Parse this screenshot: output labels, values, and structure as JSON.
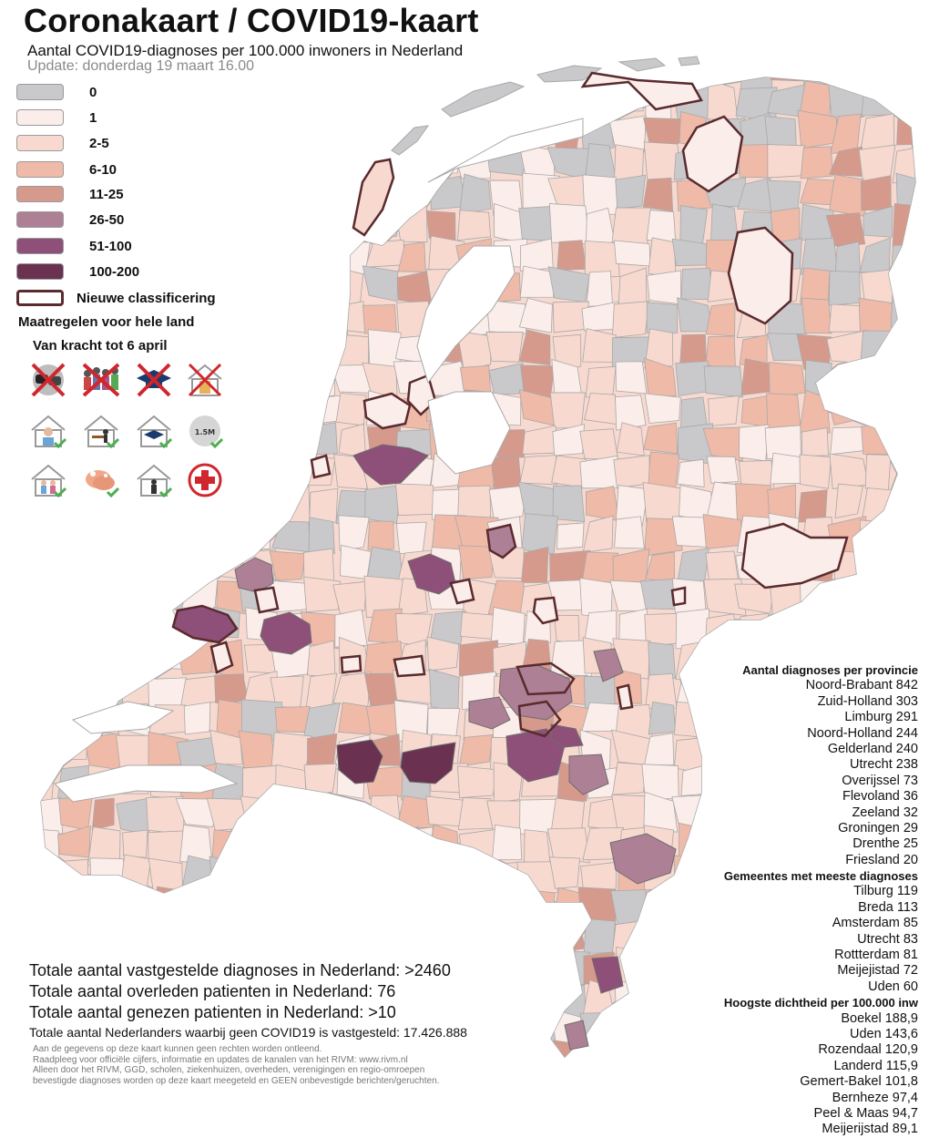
{
  "header": {
    "title": "Coronakaart / COVID19-kaart",
    "subtitle": "Aantal COVID19-diagnoses per 100.000 inwoners in Nederland",
    "update": "Update: donderdag 19 maart 16.00"
  },
  "legend": {
    "items": [
      {
        "label": "0",
        "color": "#c9c9cb"
      },
      {
        "label": "1",
        "color": "#fbeeea"
      },
      {
        "label": "2-5",
        "color": "#f7d9cf"
      },
      {
        "label": "6-10",
        "color": "#efbaa8"
      },
      {
        "label": "11-25",
        "color": "#d69a8d"
      },
      {
        "label": "26-50",
        "color": "#ad8096"
      },
      {
        "label": "51-100",
        "color": "#8e5078"
      },
      {
        "label": "100-200",
        "color": "#6a3151"
      }
    ],
    "new_classification": "Nieuwe classificering",
    "new_classification_color": "#5a2a2e"
  },
  "measures": {
    "heading": "Maatregelen voor hele land",
    "subheading": "Van kracht tot 6 april",
    "icons": [
      "no-handshake-icon",
      "no-gatherings-icon",
      "schools-closed-icon",
      "no-visits-icon",
      "stay-home-when-ill-icon",
      "work-from-home-icon",
      "online-education-icon",
      "keep-1-5m-distance-icon",
      "protect-elderly-icon",
      "wash-hands-icon",
      "stay-indoors-icon",
      "healthcare-icon"
    ],
    "distance_badge": "1.5M"
  },
  "provinces": {
    "heading": "Aantal diagnoses per provincie",
    "lines": [
      "Noord-Brabant 842",
      "Zuid-Holland 303",
      "Limburg 291",
      "Noord-Holland 244",
      "Gelderland 240",
      "Utrecht 238",
      "Overijssel 73",
      "Flevoland 36",
      "Zeeland 32",
      "Groningen 29",
      "Drenthe 25",
      "Friesland  20"
    ]
  },
  "municipalities": {
    "heading": "Gemeentes met meeste diagnoses",
    "lines": [
      "Tilburg 119",
      "Breda 113",
      "Amsterdam 85",
      "Utrecht 83",
      "Rottterdam 81",
      "Meijejistad 72",
      "Uden 60"
    ]
  },
  "density": {
    "heading": "Hoogste dichtheid per 100.000 inw",
    "lines": [
      "Boekel 188,9",
      "Uden 143,6",
      "Rozendaal 120,9",
      "Landerd 115,9",
      "Gemert-Bakel 101,8",
      "Bernheze 97,4",
      "Peel & Maas 94,7",
      "Meijerijstad 89,1"
    ]
  },
  "totals": {
    "diagnoses": "Totale aantal vastgestelde diagnoses in Nederland: >2460",
    "deceased": "Totale aantal overleden patienten in Nederland: 76",
    "recovered": "Totale aantal genezen patienten in Nederland: >10",
    "without": "Totale aantal Nederlanders waarbij geen COVID19 is vastgesteld: 17.426.888"
  },
  "disclaimer": [
    "Aan de gegevens op deze kaart kunnen geen rechten worden ontleend.",
    "Raadpleeg voor officiële cijfers, informatie en updates de kanalen van het RIVM: www.rivm.nl",
    "Alleen door het RIVM, GGD, scholen, ziekenhuizen, overheden, verenigingen en regio-omroepen",
    "bevestigde diagnoses worden op deze kaart meegeteld en GEEN onbevestigde berichten/geruchten."
  ],
  "map": {
    "water_color": "#ffffff",
    "border_color": "#a8a8a8",
    "region_border_color": "#6d6d6d"
  }
}
